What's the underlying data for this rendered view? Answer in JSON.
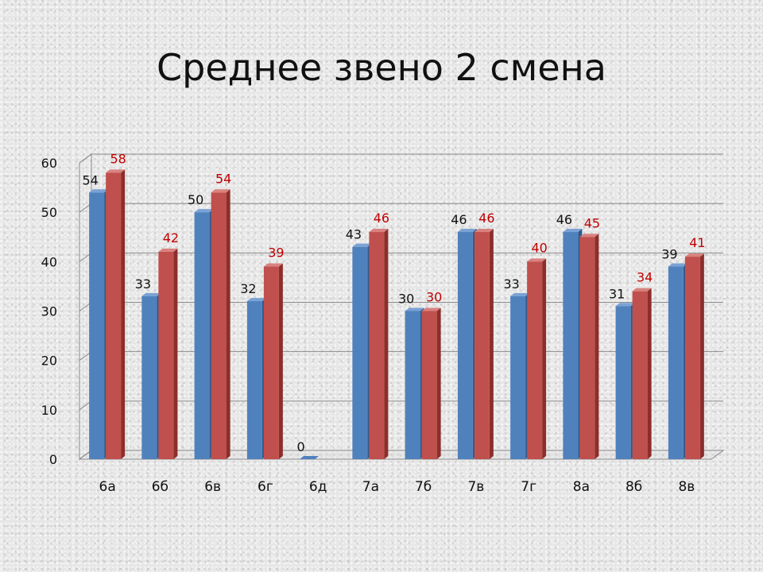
{
  "slide": {
    "title": "Среднее звено 2 смена"
  },
  "colors": {
    "series1_front": "#4f81bd",
    "series1_side": "#2f5a8e",
    "series1_top": "#7aa2d4",
    "series2_front": "#c0504d",
    "series2_side": "#8c2e2b",
    "series2_top": "#d9827f",
    "label1": "#111111",
    "label2": "#c00000",
    "grid": "#8a8a8a"
  },
  "chart_data": {
    "type": "bar",
    "title": "Среднее звено 2 смена",
    "xlabel": "",
    "ylabel": "",
    "ylim": [
      0,
      60
    ],
    "yticks": [
      0,
      10,
      20,
      30,
      40,
      50,
      60
    ],
    "grid": true,
    "legend": "none",
    "categories": [
      "6а",
      "6б",
      "6в",
      "6г",
      "6д",
      "7а",
      "7б",
      "7в",
      "7г",
      "8а",
      "8б",
      "8в"
    ],
    "series": [
      {
        "values": [
          54,
          33,
          50,
          32,
          0,
          43,
          30,
          46,
          33,
          46,
          31,
          39
        ],
        "labels": [
          "54",
          "33",
          "50",
          "32",
          "0",
          "43",
          "30",
          "46",
          "33",
          "46",
          "31",
          "39"
        ]
      },
      {
        "values": [
          58,
          42,
          54,
          39,
          null,
          46,
          30,
          46,
          40,
          45,
          34,
          41
        ],
        "labels": [
          "58",
          "42",
          "54",
          "39",
          "",
          "46",
          "30",
          "46",
          "40",
          "45",
          "34",
          "41"
        ]
      }
    ]
  }
}
